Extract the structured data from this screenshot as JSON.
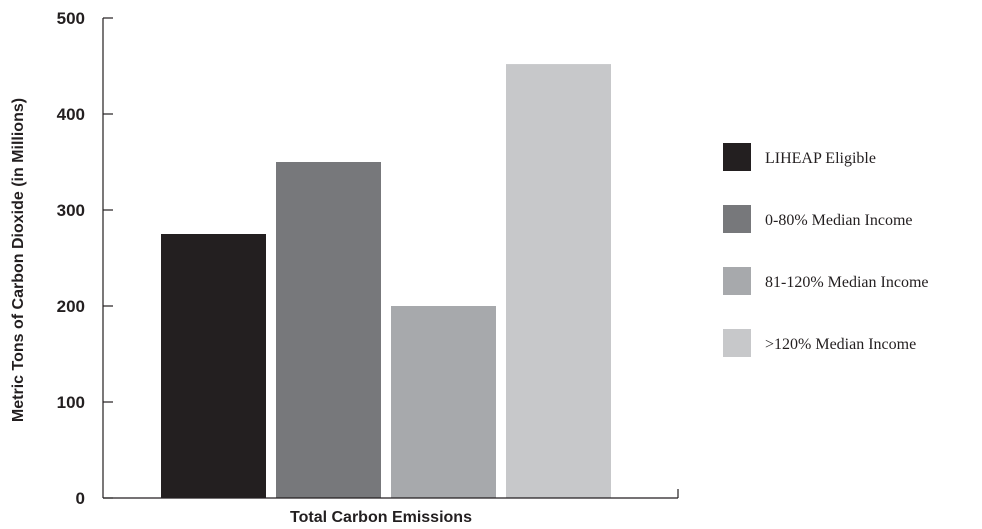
{
  "chart_data": {
    "type": "bar",
    "title": "",
    "xlabel": "Total Carbon Emissions",
    "ylabel": "Metric Tons of Carbon Dioxide (in Millions)",
    "ylim": [
      0,
      500
    ],
    "yticks": [
      "0",
      "100",
      "200",
      "300",
      "400",
      "500"
    ],
    "categories": [
      "Total Carbon Emissions"
    ],
    "series": [
      {
        "name": "LIHEAP Eligible",
        "values": [
          275
        ],
        "color": "#231f20"
      },
      {
        "name": "0-80% Median Income",
        "values": [
          350
        ],
        "color": "#77787b"
      },
      {
        "name": "81-120% Median Income",
        "values": [
          200
        ],
        "color": "#a7a9ac"
      },
      {
        "name": ">120% Median Income",
        "values": [
          452
        ],
        "color": "#c7c8ca"
      }
    ],
    "legend_position": "right",
    "grid": false
  }
}
